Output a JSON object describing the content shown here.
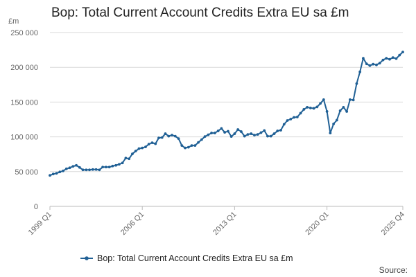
{
  "chart_data": {
    "type": "line",
    "title": "Bop: Total Current Account Credits Extra EU sa £m",
    "unit_label": "£m",
    "source_label": "Source:",
    "ylim": [
      0,
      250000
    ],
    "y_ticks": [
      0,
      50000,
      100000,
      150000,
      200000,
      250000
    ],
    "y_tick_labels": [
      "0",
      "50 000",
      "100 000",
      "150 000",
      "200 000",
      "250 000"
    ],
    "x_tick_labels": [
      "1999 Q1",
      "2006 Q1",
      "2013 Q1",
      "2020 Q1",
      "2025 Q4"
    ],
    "x_tick_indices": [
      0,
      28,
      56,
      84,
      107
    ],
    "grid": true,
    "legend_position": "bottom",
    "colors": {
      "series": "#206095",
      "grid": "#d9d9d9",
      "axis": "#bbbbbb"
    },
    "series": [
      {
        "name": "Bop: Total Current Account Credits Extra EU sa £m",
        "x_start": "1999 Q1",
        "x_end": "2025 Q4",
        "values": [
          44500,
          46500,
          47500,
          49500,
          51000,
          54000,
          55500,
          57500,
          59000,
          56000,
          52500,
          52500,
          52500,
          53000,
          53000,
          52500,
          56500,
          56500,
          56500,
          58000,
          59000,
          60500,
          62500,
          69500,
          68500,
          75500,
          79500,
          83000,
          84000,
          85500,
          89500,
          91500,
          90000,
          98500,
          99000,
          104500,
          101000,
          102500,
          101000,
          97500,
          87500,
          84000,
          85000,
          87500,
          87500,
          92000,
          96000,
          100500,
          103000,
          105500,
          105500,
          108500,
          112000,
          106500,
          108000,
          100500,
          104500,
          110500,
          107500,
          101000,
          103500,
          104500,
          102500,
          103500,
          106000,
          109000,
          101000,
          101000,
          104500,
          108500,
          109500,
          118000,
          123500,
          125500,
          128000,
          128500,
          134000,
          139500,
          142500,
          141500,
          141000,
          143000,
          148000,
          153500,
          136500,
          105500,
          118500,
          124000,
          137500,
          142500,
          136500,
          153500,
          153000,
          176500,
          193500,
          213000,
          205000,
          202500,
          204500,
          203500,
          206000,
          210500,
          213000,
          211500,
          214000,
          212500,
          217500,
          222000
        ]
      }
    ]
  }
}
